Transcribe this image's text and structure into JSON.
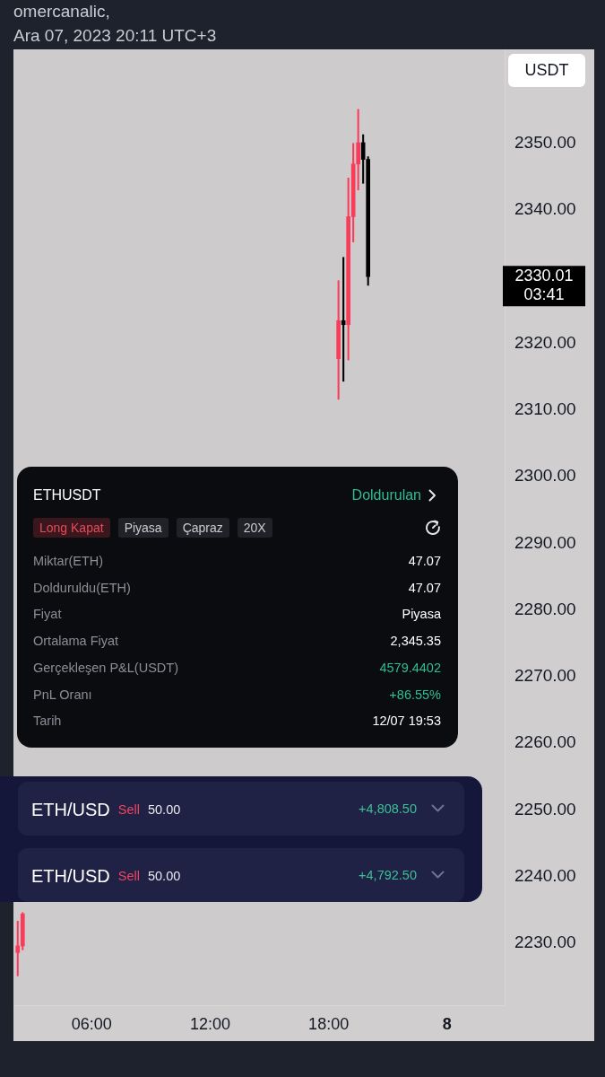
{
  "chart_data": [
    {
      "type": "candlestick",
      "title": "omercanalic,",
      "subtitle": "Ara 07, 2023 20:11 UTC+3",
      "ylabel": "USDT",
      "x": [
        "2023-12-07T02:15",
        "2023-12-07T02:30",
        "2023-12-07T18:30",
        "2023-12-07T18:45",
        "2023-12-07T19:00",
        "2023-12-07T19:15",
        "2023-12-07T19:30",
        "2023-12-07T19:45",
        "2023-12-07T20:00"
      ],
      "ohlc": [
        [
          2228.6,
          2233.3,
          2225.1,
          2229.6
        ],
        [
          2229.6,
          2234.6,
          2229.0,
          2234.4
        ],
        [
          2317.7,
          2329.4,
          2311.6,
          2323.4
        ],
        [
          2323.4,
          2332.9,
          2314.3,
          2322.8
        ],
        [
          2322.8,
          2344.8,
          2317.5,
          2339.0
        ],
        [
          2339.0,
          2350.0,
          2335.2,
          2346.9
        ],
        [
          2346.9,
          2355.1,
          2343.0,
          2350.1
        ],
        [
          2350.1,
          2351.3,
          2344.0,
          2347.6
        ],
        [
          2347.6,
          2348.0,
          2328.7,
          2330.01
        ]
      ],
      "colors": [
        "#fb3b5a",
        "#fb3b5a",
        "#fb3b5a",
        "#000000",
        "#fb3b5a",
        "#fb3b5a",
        "#fb3b5a",
        "#000000",
        "#000000"
      ],
      "xlim": [
        "2023-12-07T02:02",
        "2023-12-08T02:55"
      ],
      "ylim": [
        2220.7,
        2364.1
      ],
      "xticks": [
        {
          "value": "2023-12-07T06:00",
          "label": "06:00"
        },
        {
          "value": "2023-12-07T12:00",
          "label": "12:00"
        },
        {
          "value": "2023-12-07T18:00",
          "label": "18:00"
        },
        {
          "value": "2023-12-08",
          "label": "8"
        }
      ],
      "yticks": [
        {
          "value": 2230,
          "label": "2230.00"
        },
        {
          "value": 2240,
          "label": "2240.00"
        },
        {
          "value": 2250,
          "label": "2250.00"
        },
        {
          "value": 2260,
          "label": "2260.00"
        },
        {
          "value": 2270,
          "label": "2270.00"
        },
        {
          "value": 2280,
          "label": "2280.00"
        },
        {
          "value": 2290,
          "label": "2290.00"
        },
        {
          "value": 2300,
          "label": "2300.00"
        },
        {
          "value": 2310,
          "label": "2310.00"
        },
        {
          "value": 2320,
          "label": "2320.00"
        },
        {
          "value": 2340,
          "label": "2340.00"
        },
        {
          "value": 2350,
          "label": "2350.00"
        }
      ],
      "annotations": [
        "2330.01",
        "03:41"
      ]
    },
    {
      "type": "other",
      "title": "ETHUSDT",
      "subtitle": "Doldurulan",
      "annotations": [
        "Long Kapat",
        "Piyasa",
        "Çapraz",
        "20X"
      ],
      "y_categories": [
        "Miktar(ETH)",
        "Dolduruldu(ETH)",
        "Fiyat",
        "Ortalama Fiyat",
        "Gerçekleşen P&L(USDT)",
        "PnL Oranı",
        "Tarih"
      ],
      "cell_labels": [
        [
          "47.07"
        ],
        [
          "47.07"
        ],
        [
          "Piyasa"
        ],
        [
          "2,345.35"
        ],
        [
          "4579.4402"
        ],
        [
          "+86.55%"
        ],
        [
          "12/07 19:53"
        ]
      ],
      "colors": [
        "#ffffff",
        "#ffffff",
        "#ffffff",
        "#ffffff",
        "#2fbd93",
        "#2fbd93",
        "#ffffff"
      ]
    },
    {
      "type": "other",
      "y_categories": [
        "ETH/USD",
        "ETH/USD"
      ],
      "cell_labels": [
        [
          "Sell",
          "50.00",
          "+4,808.50"
        ],
        [
          "Sell",
          "50.00",
          "+4,792.50"
        ]
      ],
      "colors": [
        "#f2455d",
        "#e8e8ee",
        "#3dbf97"
      ]
    }
  ]
}
